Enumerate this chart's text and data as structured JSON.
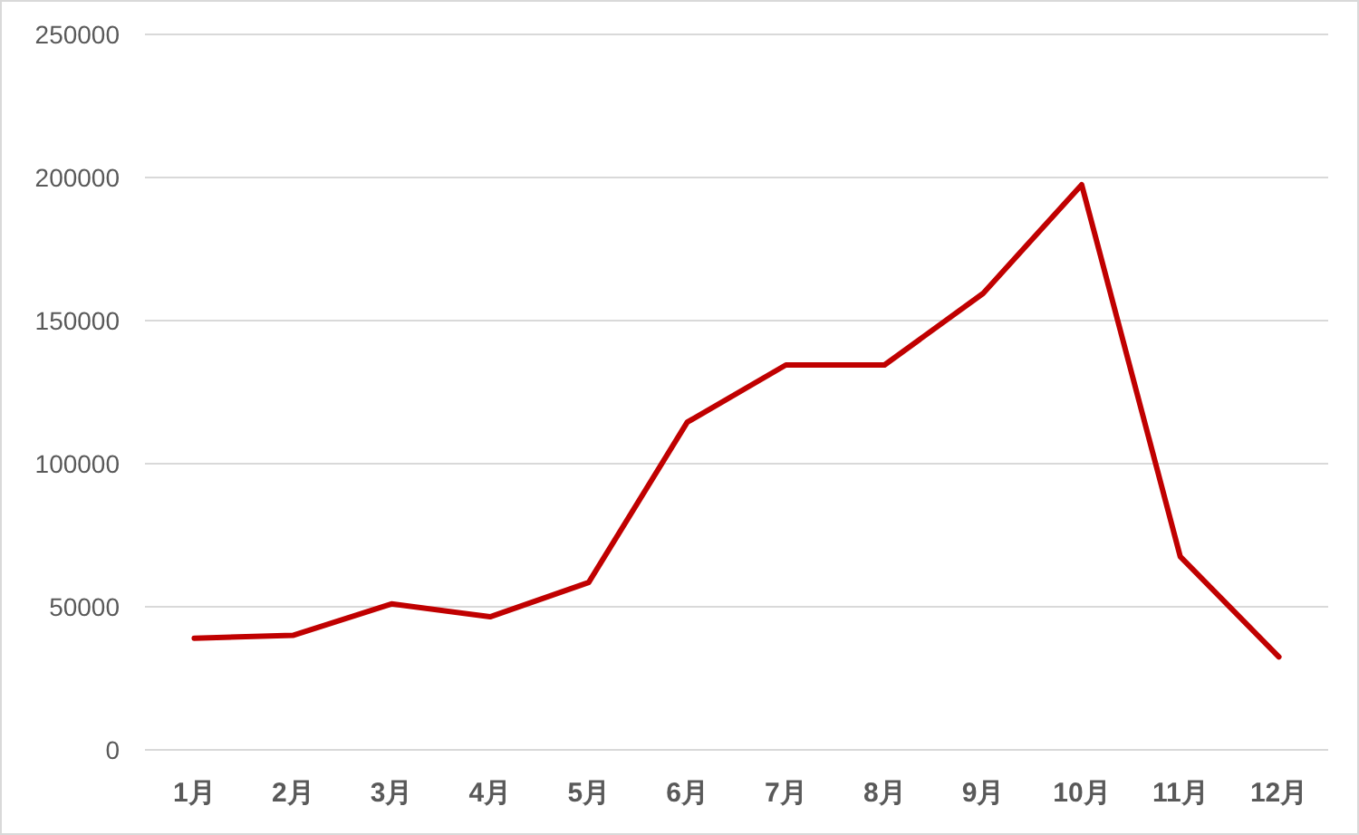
{
  "chart_data": {
    "type": "line",
    "categories": [
      "1月",
      "2月",
      "3月",
      "4月",
      "5月",
      "6月",
      "7月",
      "8月",
      "9月",
      "10月",
      "11月",
      "12月"
    ],
    "series": [
      {
        "color": "#c00000",
        "values": [
          39000,
          40000,
          51000,
          46500,
          58500,
          114500,
          134500,
          134500,
          159500,
          197500,
          67500,
          32500
        ]
      }
    ],
    "ylim": [
      0,
      250000
    ],
    "yticks": [
      0,
      50000,
      100000,
      150000,
      200000,
      250000
    ],
    "grid": "y",
    "marker": "none",
    "line_style": "solid"
  }
}
